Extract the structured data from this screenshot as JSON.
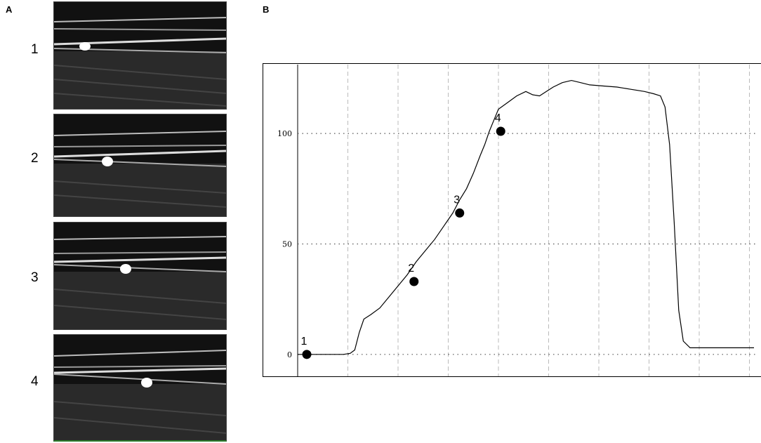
{
  "panels": {
    "a_letter": "A",
    "b_letter": "B"
  },
  "frames": [
    {
      "label": "1",
      "dot": 0.18
    },
    {
      "label": "2",
      "dot": 0.31
    },
    {
      "label": "3",
      "dot": 0.42
    },
    {
      "label": "4",
      "dot": 0.54
    }
  ],
  "chart_data": {
    "type": "line",
    "title": "",
    "xlabel": "",
    "ylabel": "",
    "ylim": [
      -8,
      128
    ],
    "xlim": [
      0,
      100
    ],
    "yticks": [
      {
        "value": 0,
        "label": "0"
      },
      {
        "value": 50,
        "label": "50"
      },
      {
        "value": 100,
        "label": "100"
      }
    ],
    "grid": true,
    "series": [
      {
        "values": [
          [
            0,
            0
          ],
          [
            2,
            0
          ],
          [
            6,
            0
          ],
          [
            10,
            0
          ],
          [
            11.5,
            0.5
          ],
          [
            12.5,
            2
          ],
          [
            13.5,
            10
          ],
          [
            14.5,
            16
          ],
          [
            16,
            18
          ],
          [
            18,
            21
          ],
          [
            20,
            26
          ],
          [
            22,
            31
          ],
          [
            24,
            36
          ],
          [
            26,
            42
          ],
          [
            28,
            47
          ],
          [
            30,
            52
          ],
          [
            32,
            58
          ],
          [
            34,
            64
          ],
          [
            35.5,
            70
          ],
          [
            37,
            75
          ],
          [
            38.5,
            82
          ],
          [
            40,
            90
          ],
          [
            41,
            95
          ],
          [
            42,
            101
          ],
          [
            43,
            106
          ],
          [
            44,
            111
          ],
          [
            46,
            114
          ],
          [
            48,
            117
          ],
          [
            50,
            119
          ],
          [
            51.5,
            117.5
          ],
          [
            53,
            117
          ],
          [
            54.5,
            119
          ],
          [
            56,
            121
          ],
          [
            58,
            123
          ],
          [
            60,
            124
          ],
          [
            62,
            123
          ],
          [
            64,
            122
          ],
          [
            67,
            121.5
          ],
          [
            70,
            121
          ],
          [
            73,
            120
          ],
          [
            76,
            119
          ],
          [
            78,
            118
          ],
          [
            79.5,
            117
          ],
          [
            80.5,
            112
          ],
          [
            81.5,
            95
          ],
          [
            82.5,
            60
          ],
          [
            83.5,
            20
          ],
          [
            84.5,
            6
          ],
          [
            86,
            3
          ],
          [
            90,
            3
          ],
          [
            95,
            3
          ],
          [
            100,
            3
          ]
        ]
      }
    ],
    "points": [
      {
        "label": "1",
        "x": 2,
        "y": 0
      },
      {
        "label": "2",
        "x": 25.5,
        "y": 33
      },
      {
        "label": "3",
        "x": 35.5,
        "y": 64
      },
      {
        "label": "4",
        "x": 44.5,
        "y": 101
      }
    ]
  }
}
